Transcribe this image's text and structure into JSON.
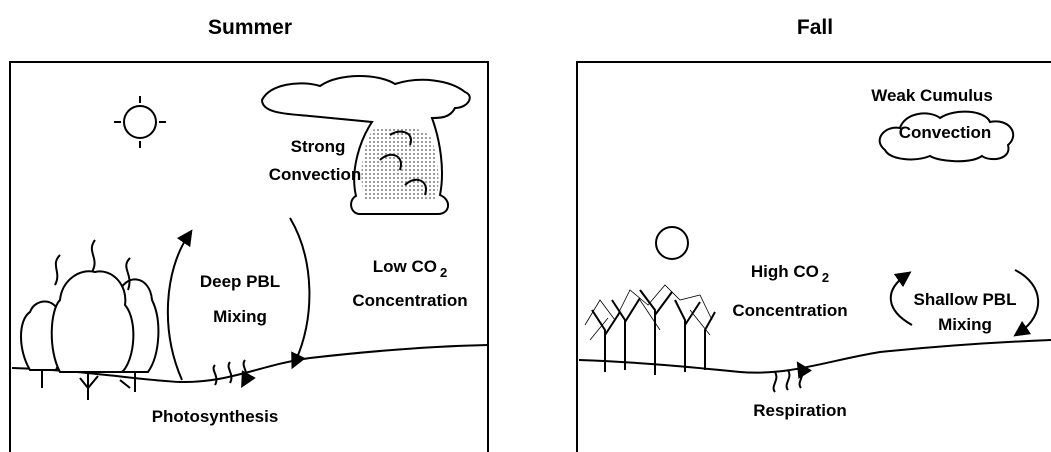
{
  "panels": [
    {
      "title": "Summer",
      "cloud_label": [
        "Strong",
        "Convection"
      ],
      "mixing_label": [
        "Deep PBL",
        "Mixing"
      ],
      "co2_label": {
        "text": "Low CO",
        "subscript": "2",
        "line2": "Concentration"
      },
      "surface_label": "Photosynthesis"
    },
    {
      "title": "Fall",
      "cloud_label": [
        "Weak  Cumulus",
        "Convection"
      ],
      "mixing_label": [
        "Shallow PBL",
        "Mixing"
      ],
      "co2_label": {
        "text": "High CO",
        "subscript": "2",
        "line2": "Concentration"
      },
      "surface_label": "Respiration"
    }
  ]
}
